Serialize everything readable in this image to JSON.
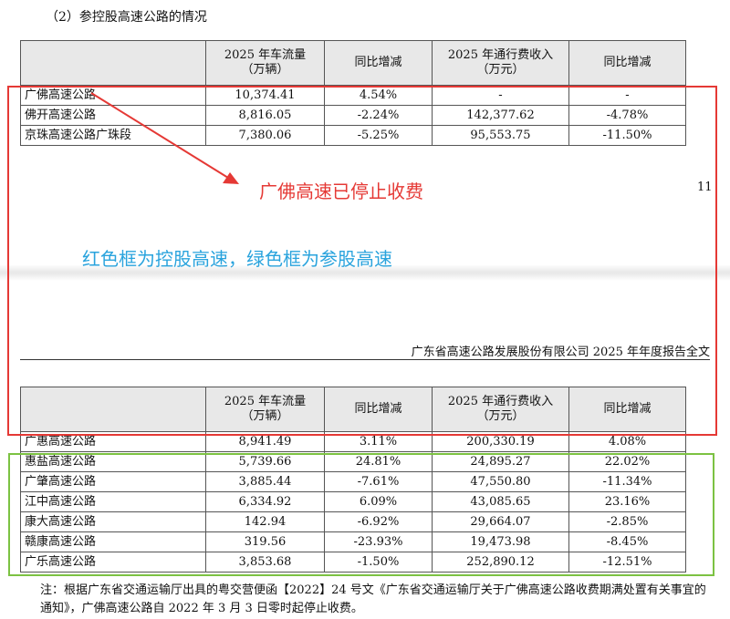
{
  "section_heading": "（2）参控股高速公路的情况",
  "table_headers": {
    "col1": "",
    "col2_line1": "2025 年车流量",
    "col2_line2": "（万辆）",
    "col3": "同比增减",
    "col4_line1": "2025 年通行费收入",
    "col4_line2": "（万元）",
    "col5": "同比增减"
  },
  "table1_rows": [
    {
      "name": "广佛高速公路",
      "traffic": "10,374.41",
      "traffic_yoy": "4.54%",
      "toll": "-",
      "toll_yoy": "-"
    },
    {
      "name": "佛开高速公路",
      "traffic": "8,816.05",
      "traffic_yoy": "-2.24%",
      "toll": "142,377.62",
      "toll_yoy": "-4.78%"
    },
    {
      "name": "京珠高速公路广珠段",
      "traffic": "7,380.06",
      "traffic_yoy": "-5.25%",
      "toll": "95,553.75",
      "toll_yoy": "-11.50%"
    }
  ],
  "page_number": "11",
  "report_title": "广东省高速公路发展股份有限公司 2025 年年度报告全文",
  "table2_rows": [
    {
      "name": "广惠高速公路",
      "traffic": "8,941.49",
      "traffic_yoy": "3.11%",
      "toll": "200,330.19",
      "toll_yoy": "4.08%"
    },
    {
      "name": "惠盐高速公路",
      "traffic": "5,739.66",
      "traffic_yoy": "24.81%",
      "toll": "24,895.27",
      "toll_yoy": "22.02%"
    },
    {
      "name": "广肇高速公路",
      "traffic": "3,885.44",
      "traffic_yoy": "-7.61%",
      "toll": "47,550.80",
      "toll_yoy": "-11.34%"
    },
    {
      "name": "江中高速公路",
      "traffic": "6,334.92",
      "traffic_yoy": "6.09%",
      "toll": "43,085.65",
      "toll_yoy": "23.16%"
    },
    {
      "name": "康大高速公路",
      "traffic": "142.94",
      "traffic_yoy": "-6.92%",
      "toll": "29,664.07",
      "toll_yoy": "-2.85%"
    },
    {
      "name": "赣康高速公路",
      "traffic": "319.56",
      "traffic_yoy": "-23.93%",
      "toll": "19,473.98",
      "toll_yoy": "-8.45%"
    },
    {
      "name": "广乐高速公路",
      "traffic": "3,853.68",
      "traffic_yoy": "-1.50%",
      "toll": "252,890.12",
      "toll_yoy": "-12.51%"
    }
  ],
  "annotations": {
    "stopped_toll": "广佛高速已停止收费",
    "legend": "红色框为控股高速，绿色框为参股高速"
  },
  "footnote": "注：根据广东省交通运输厅出具的粤交营便函【2022】24 号文《广东省交通运输厅关于广佛高速公路收费期满处置有关事宜的通知》，广佛高速公路自 2022 年 3 月 3 日零时起停止收费。",
  "colors": {
    "red_box": "#e53935",
    "green_box": "#7cc242",
    "blue_text": "#29a3dd",
    "header_bg": "#e8e8e8"
  }
}
